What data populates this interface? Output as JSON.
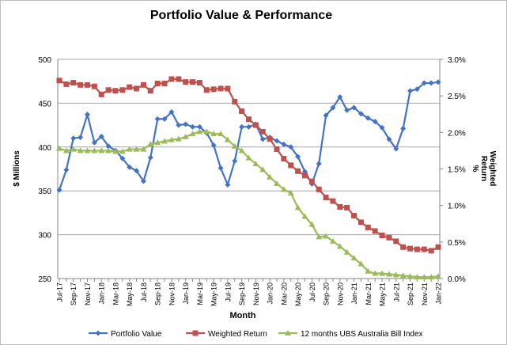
{
  "chart_data": {
    "type": "line",
    "title": "Portfolio Value & Performance",
    "xlabel": "Month",
    "ylabel": "$ Millions",
    "y2label_lines": [
      "Weighted",
      "Return",
      "%"
    ],
    "ylim": [
      250,
      500
    ],
    "y_ticks": [
      250,
      300,
      350,
      400,
      450,
      500
    ],
    "y2lim": [
      0,
      3.0
    ],
    "y2_ticks": [
      "0.0%",
      "0.5%",
      "1.0%",
      "1.5%",
      "2.0%",
      "2.5%",
      "3.0%"
    ],
    "grid": true,
    "legend_position": "bottom",
    "x": [
      "Jul-17",
      "Aug-17",
      "Sep-17",
      "Oct-17",
      "Nov-17",
      "Dec-17",
      "Jan-18",
      "Feb-18",
      "Mar-18",
      "Apr-18",
      "May-18",
      "Jun-18",
      "Jul-18",
      "Aug-18",
      "Sep-18",
      "Oct-18",
      "Nov-18",
      "Dec-18",
      "Jan-19",
      "Feb-19",
      "Mar-19",
      "Apr-19",
      "May-19",
      "Jun-19",
      "Jul-19",
      "Aug-19",
      "Sep-19",
      "Oct-19",
      "Nov-19",
      "Dec-19",
      "Jan-20",
      "Feb-20",
      "Mar-20",
      "Apr-20",
      "May-20",
      "Jun-20",
      "Jul-20",
      "Aug-20",
      "Sep-20",
      "Oct-20",
      "Nov-20",
      "Dec-20",
      "Jan-21",
      "Feb-21",
      "Mar-21",
      "Apr-21",
      "May-21",
      "Jun-21",
      "Jul-21",
      "Aug-21",
      "Sep-21",
      "Oct-21",
      "Nov-21",
      "Dec-21",
      "Jan-22"
    ],
    "series": [
      {
        "name": "Portfolio Value",
        "axis": "left",
        "color": "#4472C4",
        "marker": "diamond",
        "values": [
          351,
          374,
          410,
          411,
          437,
          405,
          412,
          401,
          396,
          387,
          377,
          373,
          361,
          388,
          432,
          432,
          440,
          425,
          426,
          423,
          423,
          416,
          402,
          376,
          357,
          384,
          423,
          423,
          426,
          409,
          411,
          407,
          403,
          400,
          389,
          372,
          358,
          381,
          436,
          445,
          457,
          442,
          445,
          438,
          433,
          429,
          422,
          409,
          398,
          421,
          464,
          466,
          473,
          473,
          474
        ]
      },
      {
        "name": "Weighted Return",
        "axis": "right",
        "color": "#C0504D",
        "marker": "square",
        "values": [
          2.71,
          2.66,
          2.68,
          2.65,
          2.65,
          2.63,
          2.52,
          2.58,
          2.57,
          2.58,
          2.62,
          2.6,
          2.65,
          2.57,
          2.67,
          2.67,
          2.73,
          2.73,
          2.69,
          2.69,
          2.68,
          2.58,
          2.59,
          2.6,
          2.6,
          2.42,
          2.29,
          2.18,
          2.1,
          2.01,
          1.91,
          1.77,
          1.64,
          1.55,
          1.47,
          1.41,
          1.33,
          1.22,
          1.11,
          1.06,
          0.98,
          0.97,
          0.86,
          0.77,
          0.7,
          0.65,
          0.59,
          0.56,
          0.51,
          0.43,
          0.41,
          0.4,
          0.4,
          0.38,
          0.43
        ]
      },
      {
        "name": "12 months UBS Australia Bill Index",
        "axis": "right",
        "color": "#9BBB59",
        "marker": "triangle",
        "values": [
          1.78,
          1.75,
          1.77,
          1.75,
          1.75,
          1.75,
          1.75,
          1.75,
          1.74,
          1.74,
          1.77,
          1.77,
          1.77,
          1.84,
          1.86,
          1.88,
          1.9,
          1.91,
          1.94,
          1.98,
          2.01,
          2.01,
          1.98,
          1.98,
          1.9,
          1.81,
          1.75,
          1.65,
          1.57,
          1.49,
          1.39,
          1.3,
          1.22,
          1.17,
          0.97,
          0.85,
          0.74,
          0.57,
          0.58,
          0.51,
          0.44,
          0.36,
          0.28,
          0.2,
          0.1,
          0.07,
          0.07,
          0.06,
          0.05,
          0.04,
          0.03,
          0.02,
          0.02,
          0.02,
          0.03
        ]
      }
    ]
  }
}
